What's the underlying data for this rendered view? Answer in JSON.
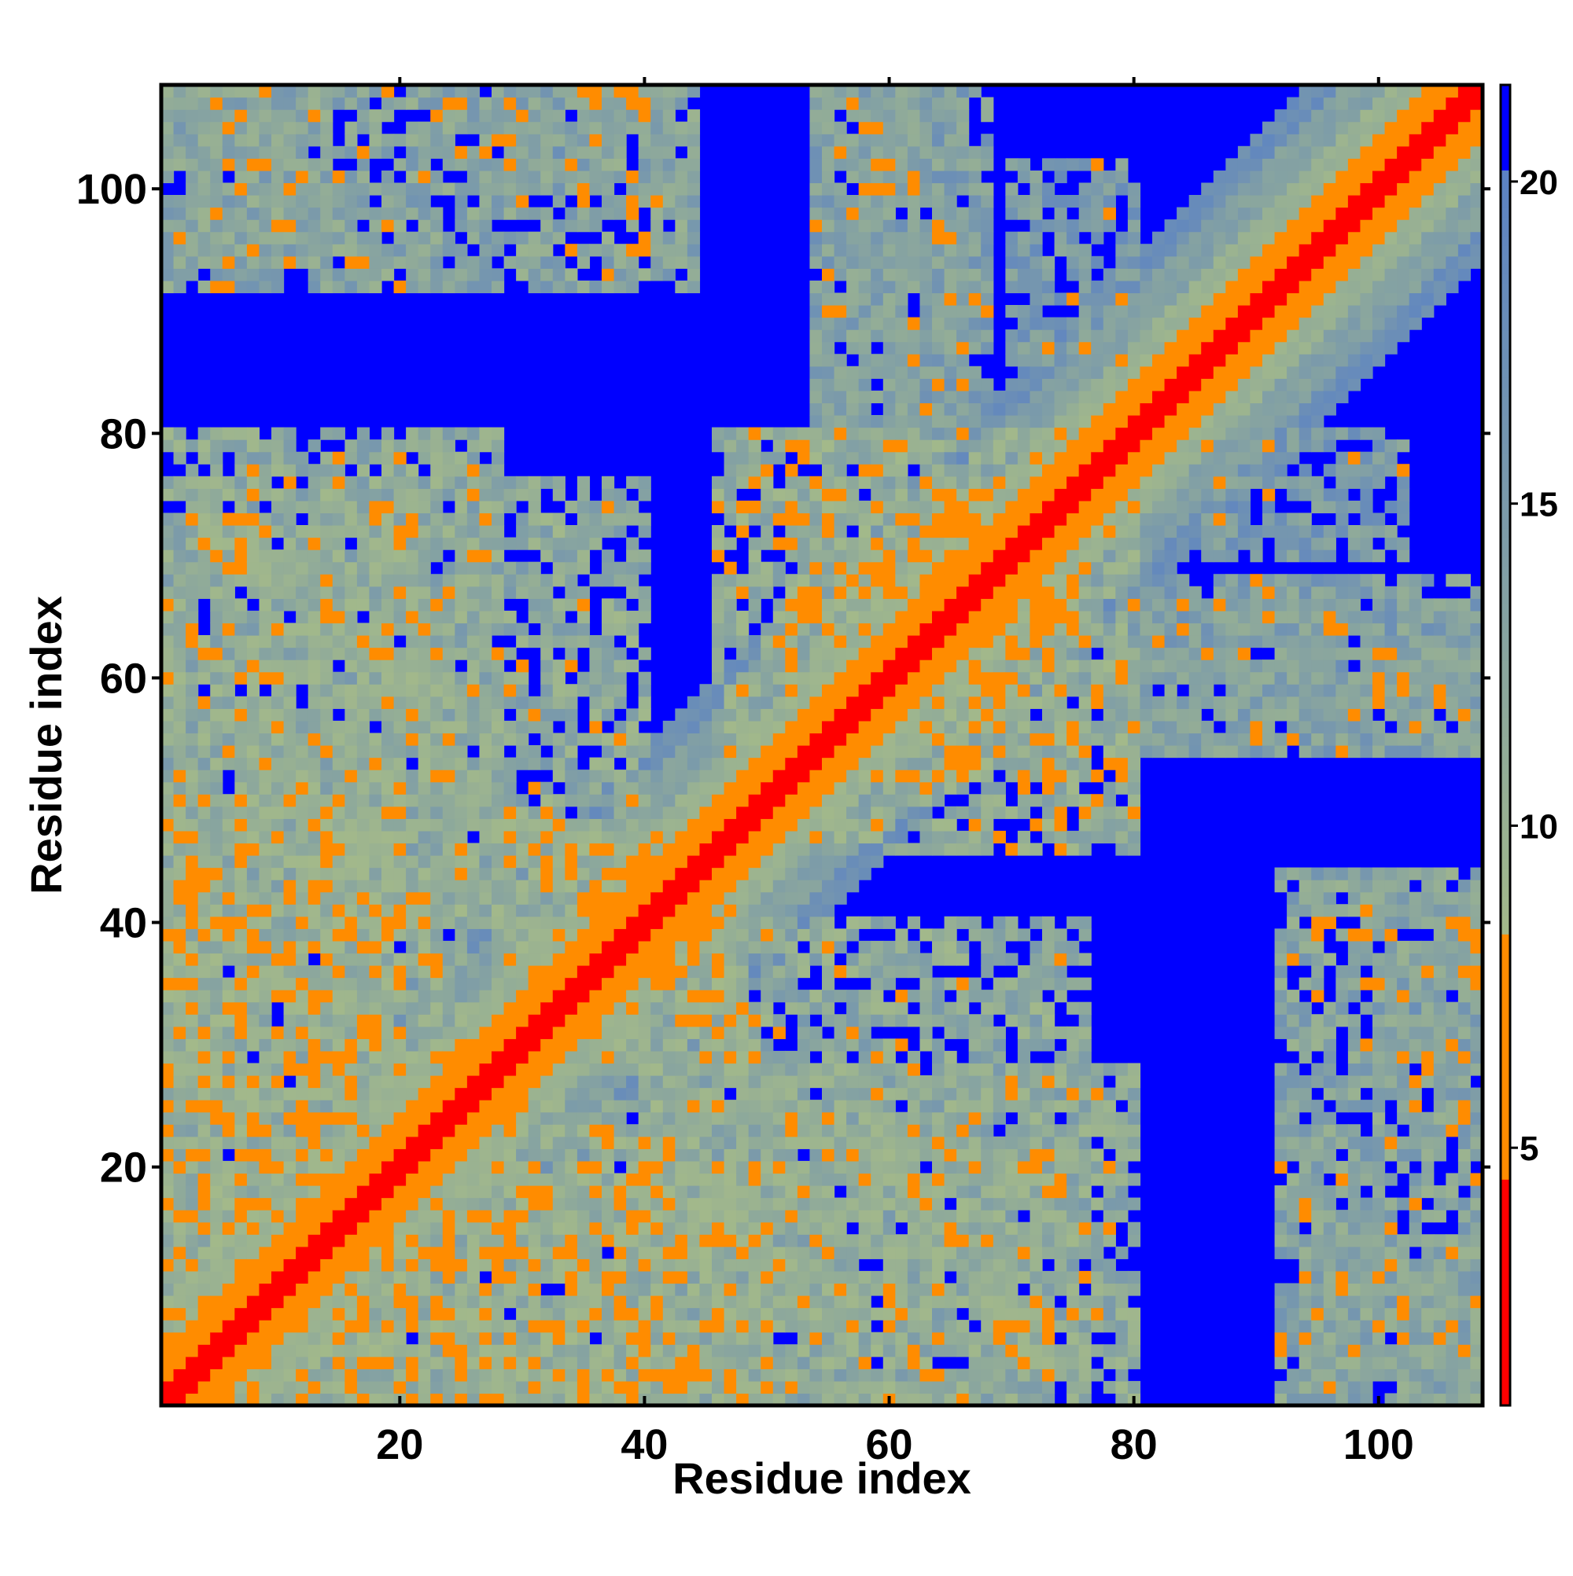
{
  "chart_data": {
    "type": "heatmap",
    "title": "",
    "xlabel": "Residue index",
    "ylabel": "Residue index",
    "n_residues": 108,
    "xlim": [
      1,
      108
    ],
    "ylim": [
      1,
      108
    ],
    "x_ticks": [
      20,
      40,
      60,
      80,
      100
    ],
    "y_ticks": [
      20,
      40,
      60,
      80,
      100
    ],
    "x_tick_labels": [
      "20",
      "40",
      "60",
      "80",
      "100"
    ],
    "y_tick_labels": [
      "20",
      "40",
      "60",
      "80",
      "100"
    ],
    "colorbar": {
      "range": [
        1,
        21.5
      ],
      "ticks": [
        5,
        10,
        15,
        20
      ],
      "tick_labels": [
        "5",
        "10",
        "15",
        "20"
      ],
      "colors": {
        "very_close": "#ff0000",
        "close": "#ff8c00",
        "near_cutoff": "#ff8c00",
        "mid": "#a3b98a",
        "far": "#5b82c4",
        "very_far": "#0000ff"
      }
    },
    "diagonal": {
      "description_values_in_angstrom": {
        "offset_0": 1.5,
        "offset_1": 3.8,
        "offset_2": 5.5,
        "offset_3_4": 7,
        "offset_5_7": 10,
        "offset_8_12": 14,
        "beyond": 21
      }
    },
    "contact_regions": [
      {
        "x": [
          1,
          14
        ],
        "y": [
          94,
          108
        ],
        "level": 13
      },
      {
        "x": [
          26,
          44
        ],
        "y": [
          100,
          108
        ],
        "level": 14
      },
      {
        "x": [
          54,
          66
        ],
        "y": [
          80,
          108
        ],
        "level": 14
      },
      {
        "x": [
          70,
          80
        ],
        "y": [
          86,
          102
        ],
        "level": 15
      },
      {
        "x": [
          1,
          28
        ],
        "y": [
          43,
          80
        ],
        "level": 12
      },
      {
        "x": [
          1,
          20
        ],
        "y": [
          1,
          50
        ],
        "level": 11
      },
      {
        "x": [
          20,
          42
        ],
        "y": [
          1,
          25
        ],
        "level": 11
      },
      {
        "x": [
          40,
          76
        ],
        "y": [
          1,
          40
        ],
        "level": 12
      },
      {
        "x": [
          46,
          76
        ],
        "y": [
          52,
          80
        ],
        "level": 11
      },
      {
        "x": [
          78,
          108
        ],
        "y": [
          54,
          68
        ],
        "level": 14
      },
      {
        "x": [
          92,
          108
        ],
        "y": [
          1,
          44
        ],
        "level": 13
      },
      {
        "x": [
          28,
          46
        ],
        "y": [
          36,
          48
        ],
        "level": 11
      }
    ],
    "hotspots": [
      {
        "x": 35,
        "y": 42,
        "value": 6
      },
      {
        "x": 37,
        "y": 40,
        "value": 6
      },
      {
        "x": 41,
        "y": 36,
        "value": 6
      },
      {
        "x": 64,
        "y": 75,
        "value": 6
      },
      {
        "x": 65,
        "y": 74,
        "value": 6
      },
      {
        "x": 66,
        "y": 73,
        "value": 6
      },
      {
        "x": 72,
        "y": 66,
        "value": 6
      },
      {
        "x": 73,
        "y": 65,
        "value": 6
      },
      {
        "x": 2,
        "y": 42,
        "value": 6
      },
      {
        "x": 3,
        "y": 43,
        "value": 6
      },
      {
        "x": 4,
        "y": 44,
        "value": 6
      },
      {
        "x": 18,
        "y": 74,
        "value": 6
      },
      {
        "x": 20,
        "y": 72,
        "value": 6
      },
      {
        "x": 71,
        "y": 20,
        "value": 6
      },
      {
        "x": 73,
        "y": 18,
        "value": 6
      },
      {
        "x": 42,
        "y": 2,
        "value": 6
      },
      {
        "x": 43,
        "y": 3,
        "value": 6
      },
      {
        "x": 35,
        "y": 108,
        "value": 7
      },
      {
        "x": 38,
        "y": 108,
        "value": 7
      },
      {
        "x": 64,
        "y": 96,
        "value": 6
      },
      {
        "x": 96,
        "y": 64,
        "value": 6
      },
      {
        "x": 106,
        "y": 40,
        "value": 6
      },
      {
        "x": 107,
        "y": 36,
        "value": 6
      },
      {
        "x": 8,
        "y": 102,
        "value": 7
      },
      {
        "x": 10,
        "y": 97,
        "value": 6
      }
    ]
  }
}
